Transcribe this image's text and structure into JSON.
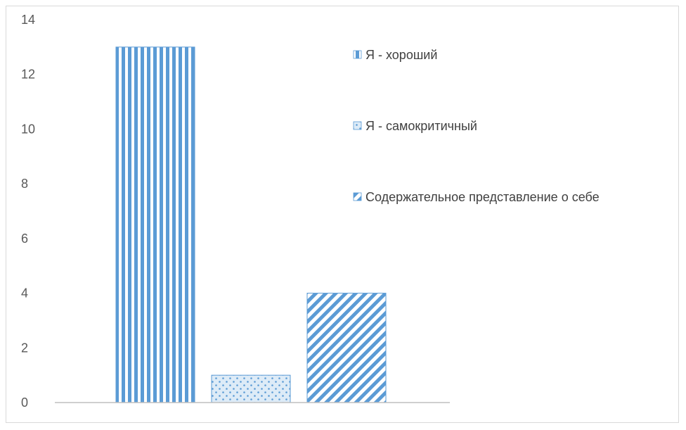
{
  "chart_data": {
    "type": "bar",
    "title": "",
    "xlabel": "",
    "ylabel": "",
    "ylim": [
      0,
      14
    ],
    "yticks": [
      0,
      2,
      4,
      6,
      8,
      10,
      12,
      14
    ],
    "grid": false,
    "legend_position": "right",
    "series": [
      {
        "name": "Я - хороший",
        "value": 13,
        "color": "#5b9bd5",
        "pattern": "vertical-stripes"
      },
      {
        "name": "Я - самокритичный",
        "value": 1,
        "color": "#5b9bd5",
        "pattern": "dots"
      },
      {
        "name": "Содержательное представление о себе",
        "value": 4,
        "color": "#5b9bd5",
        "pattern": "diagonal-stripes"
      }
    ]
  }
}
